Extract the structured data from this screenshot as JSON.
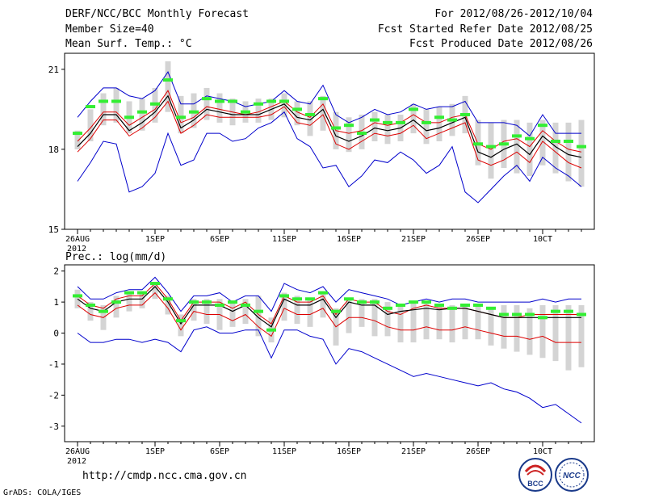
{
  "header": {
    "title": "DERF/NCC/BCC Monthly Forecast",
    "member_size": "Member Size=40",
    "variable": "Mean Surf. Temp.: °C",
    "period": "For 2012/08/26-2012/10/04",
    "fcst_started": "Fcst Started Refer Date 2012/08/25",
    "fcst_produced": "Fcst Produced Date 2012/08/26"
  },
  "footer": {
    "url": "http://cmdp.ncc.cma.gov.cn",
    "credit": "GrADS: COLA/IGES",
    "logos": [
      {
        "name": "bcc-logo",
        "text": "BCC"
      },
      {
        "name": "ncc-logo",
        "text": "NCC"
      }
    ]
  },
  "colors": {
    "envelope": "#0000cc",
    "spread": "#dd0000",
    "mean": "#000000",
    "climatology": "#33ee33",
    "box": "#d4d4d4"
  },
  "chart_data": [
    {
      "type": "line",
      "name": "temperature",
      "title": "Mean Surf. Temp.: °C",
      "x": [
        0,
        1,
        2,
        3,
        4,
        5,
        6,
        7,
        8,
        9,
        10,
        11,
        12,
        13,
        14,
        15,
        16,
        17,
        18,
        19,
        20,
        21,
        22,
        23,
        24,
        25,
        26,
        27,
        28,
        29,
        30,
        31,
        32,
        33,
        34,
        35,
        36,
        37,
        38,
        39
      ],
      "xticks": [
        {
          "x": 0,
          "label": "26AUG",
          "sub": "2012"
        },
        {
          "x": 6,
          "label": "1SEP"
        },
        {
          "x": 11,
          "label": "6SEP"
        },
        {
          "x": 16,
          "label": "11SEP"
        },
        {
          "x": 21,
          "label": "16SEP"
        },
        {
          "x": 26,
          "label": "21SEP"
        },
        {
          "x": 31,
          "label": "26SEP"
        },
        {
          "x": 36,
          "label": "10CT"
        }
      ],
      "xlim": [
        -1,
        40
      ],
      "ylim": [
        15,
        21.6
      ],
      "yticks": [
        15,
        18,
        21
      ],
      "series": {
        "max": [
          19.2,
          19.8,
          20.3,
          20.3,
          20.0,
          19.9,
          20.2,
          20.9,
          19.7,
          19.7,
          20.0,
          19.9,
          19.8,
          19.6,
          19.7,
          19.8,
          20.2,
          19.8,
          19.7,
          20.4,
          19.3,
          19.0,
          19.2,
          19.5,
          19.3,
          19.4,
          19.7,
          19.5,
          19.6,
          19.6,
          19.8,
          19.0,
          19.0,
          19.0,
          18.9,
          18.5,
          19.3,
          18.6,
          18.6,
          18.6
        ],
        "upper": [
          18.3,
          18.8,
          19.4,
          19.4,
          18.9,
          19.2,
          19.5,
          20.2,
          19.0,
          19.2,
          19.6,
          19.5,
          19.4,
          19.3,
          19.4,
          19.6,
          19.8,
          19.4,
          19.2,
          19.7,
          18.7,
          18.6,
          18.7,
          19.0,
          18.9,
          19.0,
          19.3,
          19.0,
          19.0,
          19.2,
          19.3,
          18.2,
          18.0,
          18.3,
          18.4,
          18.1,
          18.7,
          18.3,
          18.0,
          17.9
        ],
        "mean": [
          18.1,
          18.6,
          19.3,
          19.3,
          18.7,
          19.0,
          19.4,
          20.0,
          18.8,
          19.1,
          19.5,
          19.4,
          19.3,
          19.3,
          19.3,
          19.5,
          19.7,
          19.2,
          19.1,
          19.5,
          18.5,
          18.3,
          18.5,
          18.8,
          18.7,
          18.8,
          19.1,
          18.7,
          18.8,
          19.0,
          19.2,
          17.9,
          17.7,
          18.0,
          18.2,
          17.8,
          18.5,
          18.1,
          17.8,
          17.7
        ],
        "lower": [
          17.9,
          18.4,
          19.1,
          19.1,
          18.5,
          18.8,
          19.2,
          19.8,
          18.6,
          18.9,
          19.3,
          19.2,
          19.2,
          19.2,
          19.2,
          19.3,
          19.6,
          19.0,
          18.9,
          19.3,
          18.2,
          18.0,
          18.3,
          18.6,
          18.5,
          18.6,
          18.9,
          18.4,
          18.6,
          18.8,
          19.0,
          17.6,
          17.4,
          17.6,
          17.9,
          17.5,
          18.3,
          17.9,
          17.5,
          17.3
        ],
        "min": [
          16.8,
          17.5,
          18.3,
          18.2,
          16.4,
          16.6,
          17.1,
          18.6,
          17.4,
          17.6,
          18.6,
          18.6,
          18.3,
          18.4,
          18.8,
          19.0,
          19.4,
          18.4,
          18.1,
          17.3,
          17.4,
          16.6,
          17.0,
          17.6,
          17.5,
          17.9,
          17.6,
          17.1,
          17.4,
          18.1,
          16.4,
          16.0,
          16.5,
          17.0,
          17.4,
          16.8,
          17.7,
          17.3,
          17.0,
          16.6
        ],
        "box_top": [
          18.7,
          19.5,
          20.1,
          20.3,
          19.8,
          19.9,
          20.3,
          21.3,
          20.0,
          20.1,
          20.3,
          20.1,
          19.9,
          19.8,
          19.9,
          19.9,
          20.1,
          19.8,
          19.8,
          20.0,
          19.4,
          19.2,
          19.3,
          19.4,
          19.3,
          19.3,
          19.7,
          19.5,
          19.6,
          19.7,
          20.0,
          19.1,
          19.0,
          19.1,
          19.1,
          19.0,
          19.1,
          19.0,
          19.0,
          19.1
        ],
        "box_bottom": [
          18.0,
          18.3,
          18.9,
          19.0,
          18.6,
          18.7,
          19.0,
          19.4,
          18.6,
          18.8,
          19.1,
          19.0,
          18.9,
          19.0,
          19.0,
          19.1,
          19.2,
          18.9,
          18.5,
          18.7,
          18.0,
          17.9,
          18.0,
          18.3,
          18.2,
          18.3,
          18.6,
          18.2,
          18.3,
          18.5,
          18.6,
          17.4,
          16.9,
          17.3,
          17.1,
          17.0,
          17.4,
          17.1,
          16.8,
          16.6
        ],
        "climatology": [
          18.6,
          19.6,
          19.8,
          19.8,
          19.2,
          19.4,
          19.7,
          20.6,
          19.2,
          19.4,
          19.9,
          19.8,
          19.8,
          19.4,
          19.7,
          19.8,
          19.8,
          19.5,
          19.3,
          19.9,
          18.8,
          18.9,
          18.6,
          19.1,
          19.0,
          19.0,
          19.5,
          19.0,
          19.2,
          19.1,
          19.3,
          18.2,
          18.1,
          18.2,
          18.5,
          18.4,
          18.9,
          18.3,
          18.3,
          18.1
        ]
      }
    },
    {
      "type": "line",
      "name": "precipitation",
      "title": "Prec.: log(mm/d)",
      "x": [
        0,
        1,
        2,
        3,
        4,
        5,
        6,
        7,
        8,
        9,
        10,
        11,
        12,
        13,
        14,
        15,
        16,
        17,
        18,
        19,
        20,
        21,
        22,
        23,
        24,
        25,
        26,
        27,
        28,
        29,
        30,
        31,
        32,
        33,
        34,
        35,
        36,
        37,
        38,
        39
      ],
      "xticks": [
        {
          "x": 0,
          "label": "26AUG",
          "sub": "2012"
        },
        {
          "x": 6,
          "label": "1SEP"
        },
        {
          "x": 11,
          "label": "6SEP"
        },
        {
          "x": 16,
          "label": "11SEP"
        },
        {
          "x": 21,
          "label": "16SEP"
        },
        {
          "x": 26,
          "label": "21SEP"
        },
        {
          "x": 31,
          "label": "26SEP"
        },
        {
          "x": 36,
          "label": "10CT"
        }
      ],
      "xlim": [
        -1,
        40
      ],
      "ylim": [
        -3.5,
        2.2
      ],
      "yticks": [
        -3,
        -2,
        -1,
        0,
        1,
        2
      ],
      "series": {
        "max": [
          1.5,
          1.1,
          1.1,
          1.3,
          1.4,
          1.4,
          1.8,
          1.3,
          0.7,
          1.2,
          1.2,
          1.3,
          1.0,
          1.2,
          1.2,
          0.7,
          1.6,
          1.4,
          1.3,
          1.5,
          1.0,
          1.4,
          1.3,
          1.2,
          1.1,
          0.9,
          1.0,
          1.1,
          1.0,
          1.1,
          1.1,
          1.0,
          1.0,
          1.0,
          1.0,
          1.0,
          1.1,
          1.0,
          1.1,
          1.1
        ],
        "upper": [
          1.2,
          0.9,
          0.8,
          1.1,
          1.2,
          1.2,
          1.6,
          1.1,
          0.4,
          1.0,
          1.0,
          1.0,
          0.8,
          1.0,
          0.6,
          0.3,
          1.2,
          1.0,
          1.0,
          1.2,
          0.6,
          1.1,
          1.0,
          1.0,
          0.7,
          0.6,
          0.8,
          0.9,
          0.8,
          0.8,
          0.8,
          0.7,
          0.6,
          0.5,
          0.5,
          0.6,
          0.6,
          0.6,
          0.6,
          0.6
        ],
        "mean": [
          1.1,
          0.8,
          0.7,
          1.0,
          1.1,
          1.1,
          1.5,
          1.0,
          0.3,
          0.9,
          0.9,
          0.9,
          0.7,
          0.9,
          0.5,
          0.2,
          1.1,
          0.9,
          0.9,
          1.1,
          0.5,
          1.0,
          0.9,
          0.9,
          0.6,
          0.7,
          0.75,
          0.8,
          0.75,
          0.8,
          0.8,
          0.7,
          0.6,
          0.5,
          0.5,
          0.5,
          0.5,
          0.5,
          0.5,
          0.5
        ],
        "lower": [
          0.9,
          0.6,
          0.5,
          0.8,
          0.9,
          0.9,
          1.3,
          0.8,
          0.1,
          0.7,
          0.6,
          0.6,
          0.4,
          0.6,
          0.2,
          -0.1,
          0.8,
          0.6,
          0.6,
          0.8,
          0.2,
          0.5,
          0.5,
          0.4,
          0.2,
          0.1,
          0.1,
          0.2,
          0.1,
          0.1,
          0.2,
          0.1,
          0.0,
          -0.1,
          -0.1,
          -0.2,
          -0.1,
          -0.3,
          -0.3,
          -0.3
        ],
        "min": [
          0.0,
          -0.3,
          -0.3,
          -0.2,
          -0.2,
          -0.3,
          -0.2,
          -0.3,
          -0.6,
          0.1,
          0.2,
          0.0,
          0.0,
          0.1,
          0.1,
          -0.8,
          0.1,
          0.1,
          -0.1,
          -0.2,
          -1.0,
          -0.5,
          -0.6,
          -0.8,
          -1.0,
          -1.2,
          -1.4,
          -1.3,
          -1.4,
          -1.5,
          -1.6,
          -1.7,
          -1.6,
          -1.8,
          -1.9,
          -2.1,
          -2.4,
          -2.3,
          -2.6,
          -2.9
        ],
        "box_top": [
          1.4,
          1.0,
          0.9,
          1.2,
          1.3,
          1.3,
          1.6,
          1.2,
          0.6,
          1.1,
          1.1,
          1.1,
          1.0,
          1.1,
          1.2,
          0.5,
          1.3,
          1.2,
          1.1,
          1.3,
          0.8,
          1.1,
          1.1,
          1.1,
          1.0,
          0.9,
          1.0,
          1.0,
          0.9,
          0.9,
          0.9,
          0.9,
          0.8,
          0.9,
          0.9,
          0.8,
          0.9,
          0.9,
          0.9,
          0.9
        ],
        "box_bottom": [
          0.8,
          0.4,
          0.1,
          0.5,
          0.7,
          0.8,
          1.1,
          0.6,
          -0.1,
          0.4,
          0.3,
          0.1,
          0.2,
          0.3,
          -0.1,
          -0.3,
          0.4,
          0.3,
          0.2,
          0.5,
          -0.4,
          0.0,
          0.2,
          -0.1,
          -0.1,
          -0.3,
          -0.3,
          -0.2,
          -0.2,
          -0.3,
          -0.2,
          -0.2,
          -0.4,
          -0.5,
          -0.6,
          -0.7,
          -0.8,
          -0.9,
          -1.2,
          -1.1
        ],
        "climatology": [
          1.2,
          0.9,
          0.7,
          1.0,
          1.3,
          1.3,
          1.6,
          1.1,
          0.4,
          1.0,
          1.0,
          0.9,
          1.0,
          0.9,
          0.7,
          0.1,
          1.2,
          1.1,
          1.1,
          1.3,
          0.7,
          1.1,
          1.0,
          1.0,
          0.8,
          0.9,
          1.0,
          1.0,
          0.9,
          0.8,
          0.9,
          0.9,
          0.8,
          0.6,
          0.6,
          0.6,
          0.5,
          0.7,
          0.7,
          0.6
        ]
      }
    }
  ]
}
